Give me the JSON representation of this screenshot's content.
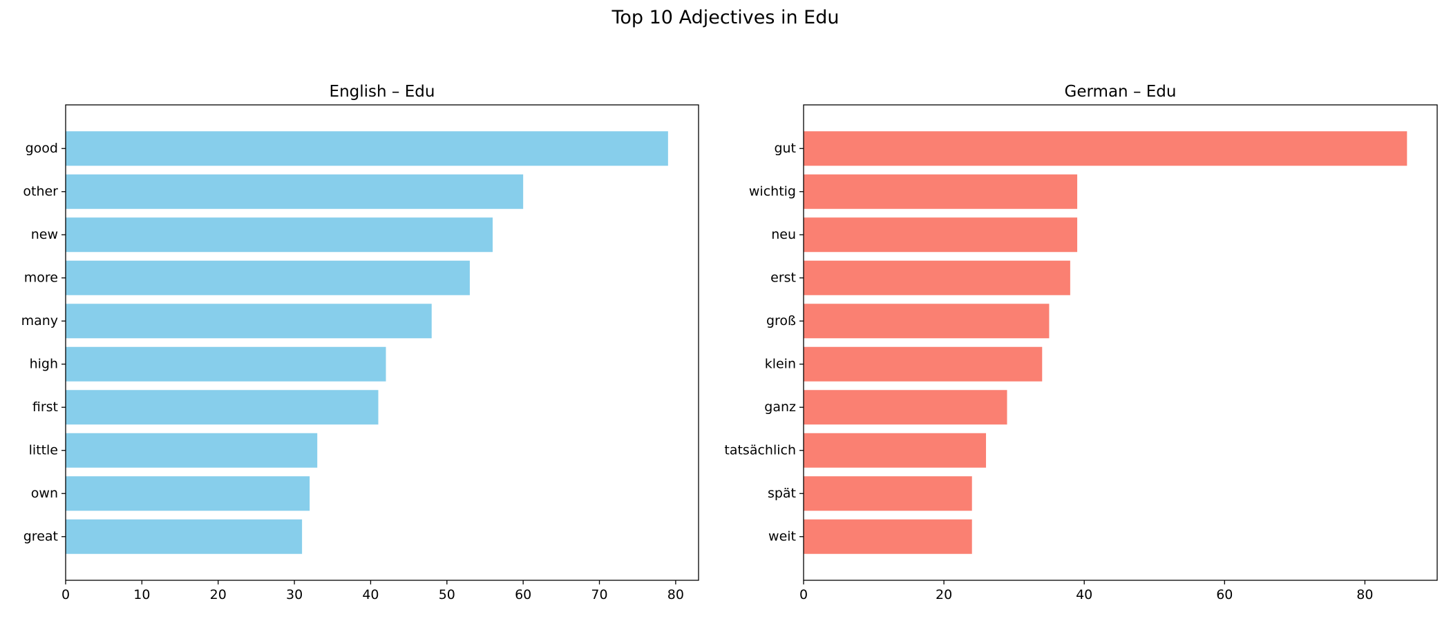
{
  "figure": {
    "title": "Top 10 Adjectives in Edu"
  },
  "chart_data": [
    {
      "type": "bar",
      "orientation": "horizontal",
      "title": "English – Edu",
      "color": "#87ceeb",
      "categories": [
        "good",
        "other",
        "new",
        "more",
        "many",
        "high",
        "first",
        "little",
        "own",
        "great"
      ],
      "values": [
        79,
        60,
        56,
        53,
        48,
        42,
        41,
        33,
        32,
        31
      ],
      "xlim": [
        0,
        83
      ],
      "xticks": [
        0,
        10,
        20,
        30,
        40,
        50,
        60,
        70,
        80
      ],
      "xlabel": "",
      "ylabel": "",
      "grid": false
    },
    {
      "type": "bar",
      "orientation": "horizontal",
      "title": "German – Edu",
      "color": "#fa8072",
      "categories": [
        "gut",
        "wichtig",
        "neu",
        "erst",
        "groß",
        "klein",
        "ganz",
        "tatsächlich",
        "spät",
        "weit"
      ],
      "values": [
        86,
        39,
        39,
        38,
        35,
        34,
        29,
        26,
        24,
        24
      ],
      "xlim": [
        0,
        90.3
      ],
      "xticks": [
        0,
        20,
        40,
        60,
        80
      ],
      "xlabel": "",
      "ylabel": "",
      "grid": false
    }
  ]
}
